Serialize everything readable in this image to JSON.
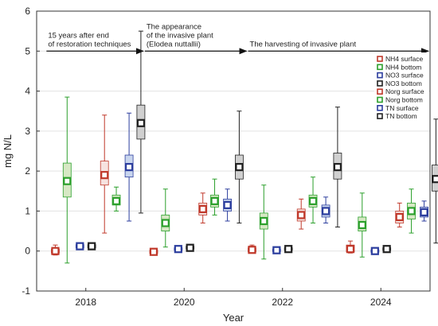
{
  "chart_data": {
    "type": "box",
    "xlabel": "Year",
    "ylabel": "mg N/L",
    "ylim": [
      -1,
      6
    ],
    "yticks": [
      -1,
      0,
      1,
      2,
      3,
      4,
      5,
      6
    ],
    "xlim": [
      2017,
      2025
    ],
    "xticks": [
      2018,
      2020,
      2022,
      2024
    ],
    "grid": true,
    "legend_position": "right",
    "annotations": [
      {
        "text": "15 years after end\nof restoration techniques",
        "x_from": 2017.2,
        "x_to": 2019.2,
        "y": 5.0
      },
      {
        "text": "The appearance\nof the invasive plant\n(Elodea nuttallii)",
        "x_from": 2019.2,
        "x_to": 2021.3,
        "y": 5.0
      },
      {
        "text": "The harvesting of invasive plant",
        "x_from": 2021.3,
        "x_to": 2025.0,
        "y": 5.0
      }
    ],
    "series": [
      {
        "name": "NH4 surface",
        "color": "#c0392b",
        "fill": "#ffffff",
        "stats": [
          {
            "x": 2017.38,
            "median": 0.0,
            "q1": -0.05,
            "q3": 0.05,
            "min": -0.1,
            "max": 0.15
          },
          {
            "x": 2019.38,
            "median": -0.02,
            "q1": -0.06,
            "q3": 0.02,
            "min": -0.08,
            "max": 0.06
          },
          {
            "x": 2021.38,
            "median": 0.03,
            "q1": -0.02,
            "q3": 0.08,
            "min": -0.05,
            "max": 0.15
          },
          {
            "x": 2023.38,
            "median": 0.05,
            "q1": -0.02,
            "q3": 0.15,
            "min": -0.05,
            "max": 0.25
          }
        ]
      },
      {
        "name": "NH4 bottom",
        "color": "#2ca02c",
        "fill": "#d6e8c4",
        "stats": [
          {
            "x": 2017.62,
            "median": 1.75,
            "q1": 1.35,
            "q3": 2.2,
            "min": -0.3,
            "max": 3.85
          },
          {
            "x": 2019.62,
            "median": 0.7,
            "q1": 0.5,
            "q3": 0.9,
            "min": 0.1,
            "max": 1.55
          },
          {
            "x": 2021.62,
            "median": 0.75,
            "q1": 0.55,
            "q3": 0.95,
            "min": -0.2,
            "max": 1.65
          },
          {
            "x": 2023.62,
            "median": 0.65,
            "q1": 0.5,
            "q3": 0.85,
            "min": -0.15,
            "max": 1.45
          }
        ]
      },
      {
        "name": "NO3 surface",
        "color": "#2c3e9e",
        "fill": "#ffffff",
        "stats": [
          {
            "x": 2017.88,
            "median": 0.12,
            "q1": 0.08,
            "q3": 0.16,
            "min": 0.05,
            "max": 0.2
          },
          {
            "x": 2019.88,
            "median": 0.05,
            "q1": 0.02,
            "q3": 0.08,
            "min": 0.0,
            "max": 0.1
          },
          {
            "x": 2021.88,
            "median": 0.02,
            "q1": -0.01,
            "q3": 0.05,
            "min": -0.03,
            "max": 0.07
          },
          {
            "x": 2023.88,
            "median": 0.0,
            "q1": -0.03,
            "q3": 0.03,
            "min": -0.05,
            "max": 0.05
          }
        ]
      },
      {
        "name": "NO3 bottom",
        "color": "#222222",
        "fill": "#ffffff",
        "stats": [
          {
            "x": 2018.12,
            "median": 0.12,
            "q1": 0.08,
            "q3": 0.16,
            "min": 0.05,
            "max": 0.2
          },
          {
            "x": 2020.12,
            "median": 0.08,
            "q1": 0.05,
            "q3": 0.12,
            "min": 0.02,
            "max": 0.15
          },
          {
            "x": 2022.12,
            "median": 0.05,
            "q1": 0.02,
            "q3": 0.08,
            "min": 0.0,
            "max": 0.1
          },
          {
            "x": 2024.12,
            "median": 0.05,
            "q1": 0.02,
            "q3": 0.08,
            "min": 0.0,
            "max": 0.1
          }
        ]
      },
      {
        "name": "Norg surface",
        "color": "#c0392b",
        "fill": "#f6e3e0",
        "stats": [
          {
            "x": 2018.38,
            "median": 1.9,
            "q1": 1.65,
            "q3": 2.25,
            "min": 0.45,
            "max": 3.4
          },
          {
            "x": 2020.38,
            "median": 1.05,
            "q1": 0.9,
            "q3": 1.2,
            "min": 0.7,
            "max": 1.45
          },
          {
            "x": 2022.38,
            "median": 0.9,
            "q1": 0.75,
            "q3": 1.05,
            "min": 0.55,
            "max": 1.3
          },
          {
            "x": 2024.38,
            "median": 0.85,
            "q1": 0.7,
            "q3": 1.0,
            "min": 0.6,
            "max": 1.2
          }
        ]
      },
      {
        "name": "Norg bottom",
        "color": "#2ca02c",
        "fill": "#d6e8c4",
        "stats": [
          {
            "x": 2018.62,
            "median": 1.25,
            "q1": 1.15,
            "q3": 1.4,
            "min": 1.0,
            "max": 1.6
          },
          {
            "x": 2020.62,
            "median": 1.25,
            "q1": 1.1,
            "q3": 1.4,
            "min": 0.9,
            "max": 1.8
          },
          {
            "x": 2022.62,
            "median": 1.25,
            "q1": 1.1,
            "q3": 1.4,
            "min": 0.7,
            "max": 1.85
          },
          {
            "x": 2024.62,
            "median": 1.0,
            "q1": 0.8,
            "q3": 1.2,
            "min": 0.45,
            "max": 1.55
          }
        ]
      },
      {
        "name": "TN surface",
        "color": "#2c3e9e",
        "fill": "#c9d6ee",
        "stats": [
          {
            "x": 2018.88,
            "median": 2.1,
            "q1": 1.85,
            "q3": 2.4,
            "min": 0.75,
            "max": 3.45
          },
          {
            "x": 2020.88,
            "median": 1.15,
            "q1": 1.0,
            "q3": 1.3,
            "min": 0.75,
            "max": 1.55
          },
          {
            "x": 2022.88,
            "median": 1.0,
            "q1": 0.85,
            "q3": 1.15,
            "min": 0.7,
            "max": 1.35
          },
          {
            "x": 2024.88,
            "median": 0.97,
            "q1": 0.85,
            "q3": 1.1,
            "min": 0.75,
            "max": 1.25
          }
        ]
      },
      {
        "name": "TN bottom",
        "color": "#222222",
        "fill": "#d0d0d0",
        "stats": [
          {
            "x": 2019.12,
            "median": 3.2,
            "q1": 2.8,
            "q3": 3.65,
            "min": 0.95,
            "max": 5.5
          },
          {
            "x": 2021.12,
            "median": 2.1,
            "q1": 1.8,
            "q3": 2.4,
            "min": 0.7,
            "max": 3.5
          },
          {
            "x": 2023.12,
            "median": 2.1,
            "q1": 1.8,
            "q3": 2.45,
            "min": 0.6,
            "max": 3.6
          },
          {
            "x": 2025.12,
            "median": 1.8,
            "q1": 1.5,
            "q3": 2.15,
            "min": 0.2,
            "max": 3.3
          }
        ]
      }
    ]
  }
}
